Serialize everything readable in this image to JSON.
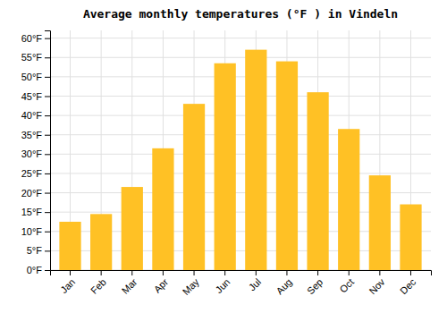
{
  "chart_data": {
    "type": "bar",
    "title": "Average monthly temperatures (°F ) in Vindeln",
    "categories": [
      "Jan",
      "Feb",
      "Mar",
      "Apr",
      "May",
      "Jun",
      "Jul",
      "Aug",
      "Sep",
      "Oct",
      "Nov",
      "Dec"
    ],
    "values": [
      12.5,
      14.5,
      21.5,
      31.5,
      43.0,
      53.5,
      57.0,
      54.0,
      46.0,
      36.5,
      24.5,
      17.0
    ],
    "color": "#FFC125",
    "ylim": [
      0,
      62
    ],
    "yticks": [
      {
        "value": 0,
        "label": "0°F"
      },
      {
        "value": 5,
        "label": "5°F"
      },
      {
        "value": 10,
        "label": "10°F"
      },
      {
        "value": 15,
        "label": "15°F"
      },
      {
        "value": 20,
        "label": "20°F"
      },
      {
        "value": 25,
        "label": "25°F"
      },
      {
        "value": 30,
        "label": "30°F"
      },
      {
        "value": 35,
        "label": "35°F"
      },
      {
        "value": 40,
        "label": "40°F"
      },
      {
        "value": 45,
        "label": "45°F"
      },
      {
        "value": 50,
        "label": "50°F"
      },
      {
        "value": 55,
        "label": "55°F"
      },
      {
        "value": 60,
        "label": "60°F"
      }
    ],
    "grid": true
  }
}
